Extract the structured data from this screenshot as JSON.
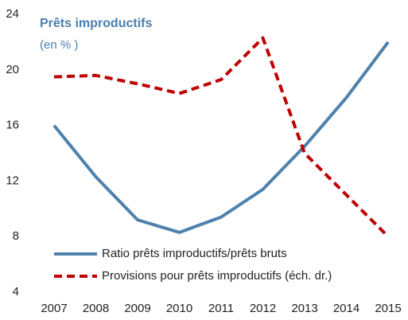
{
  "chart_data": {
    "type": "line",
    "title": "Prêts improductifs",
    "subtitle": "(en % )",
    "categories": [
      "2007",
      "2008",
      "2009",
      "2010",
      "2011",
      "2012",
      "2013",
      "2014",
      "2015"
    ],
    "series": [
      {
        "name": "Ratio prêts improductifs/prêts bruts",
        "color": "#4f81ad",
        "dashed": false,
        "values": [
          16,
          12.3,
          9.2,
          8.3,
          9.4,
          11.4,
          14.5,
          18,
          22
        ]
      },
      {
        "name": "Provisions pour prêts improductifs (éch. dr.)",
        "color": "#c00000",
        "dashed": true,
        "values": [
          19.5,
          19.6,
          19.0,
          18.3,
          19.3,
          22.3,
          14,
          11,
          8
        ]
      }
    ],
    "ylim": [
      4,
      24
    ],
    "yticks": [
      4,
      8,
      12,
      16,
      20,
      24
    ],
    "grid": false
  }
}
